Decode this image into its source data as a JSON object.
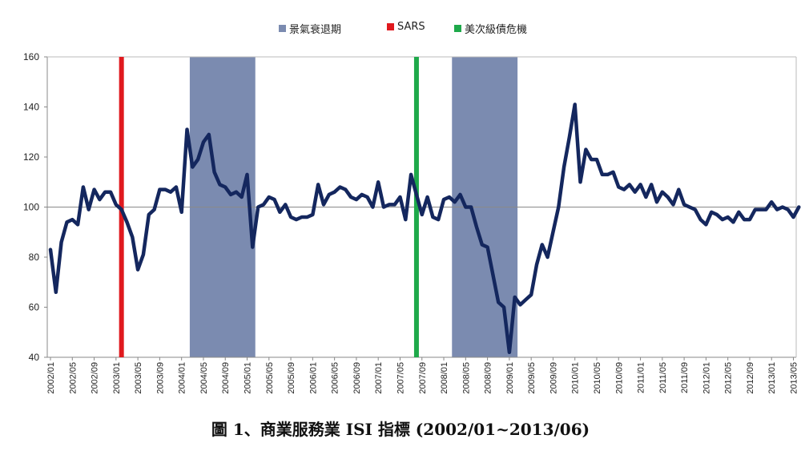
{
  "caption": "圖 1、商業服務業 ISI 指標 (2002/01~2013/06)",
  "legend": [
    {
      "label": "景氣衰退期",
      "color": "#7b8bb0"
    },
    {
      "label": "SARS",
      "color": "#e0191e"
    },
    {
      "label": "美次級債危機",
      "color": "#1ea94a"
    }
  ],
  "chart_data": {
    "type": "line",
    "title": "",
    "xlabel": "",
    "ylabel": "",
    "ylim": [
      40,
      160
    ],
    "yticks": [
      40,
      60,
      80,
      100,
      120,
      140,
      160
    ],
    "reference_line": 100,
    "grid": false,
    "legend_position": "top-center",
    "xtick_labels": [
      "2002/01",
      "2002/05",
      "2002/09",
      "2003/01",
      "2003/05",
      "2003/09",
      "2004/01",
      "2004/05",
      "2004/09",
      "2005/01",
      "2005/05",
      "2005/09",
      "2006/01",
      "2006/05",
      "2006/09",
      "2007/01",
      "2007/05",
      "2007/09",
      "2008/01",
      "2008/05",
      "2008/09",
      "2009/01",
      "2009/05",
      "2009/09",
      "2010/01",
      "2010/05",
      "2010/09",
      "2011/01",
      "2011/05",
      "2011/09",
      "2012/01",
      "2012/05",
      "2012/09",
      "2013/01",
      "2013/05"
    ],
    "recession_periods": [
      [
        "2004/03",
        "2005/02"
      ],
      [
        "2008/03",
        "2009/02"
      ]
    ],
    "events": [
      {
        "name": "SARS",
        "date": "2003/02",
        "color": "#e0191e"
      },
      {
        "name": "美次級債危機",
        "date": "2007/08",
        "color": "#1ea94a"
      }
    ],
    "series": [
      {
        "name": "商業服務業 ISI",
        "color": "#14275e",
        "start": "2002/01",
        "values": [
          83,
          66,
          86,
          94,
          95,
          93,
          108,
          99,
          107,
          103,
          106,
          106,
          101,
          99,
          94,
          88,
          75,
          81,
          97,
          99,
          107,
          107,
          106,
          108,
          98,
          131,
          116,
          119,
          126,
          129,
          114,
          109,
          108,
          105,
          106,
          104,
          113,
          84,
          100,
          101,
          104,
          103,
          98,
          101,
          96,
          95,
          96,
          96,
          97,
          109,
          101,
          105,
          106,
          108,
          107,
          104,
          103,
          105,
          104,
          100,
          110,
          100,
          101,
          101,
          104,
          95,
          113,
          105,
          97,
          104,
          96,
          95,
          103,
          104,
          102,
          105,
          100,
          100,
          92,
          85,
          84,
          73,
          62,
          60,
          42,
          64,
          61,
          63,
          65,
          77,
          85,
          80,
          90,
          100,
          116,
          128,
          141,
          110,
          123,
          119,
          119,
          113,
          113,
          114,
          108,
          107,
          109,
          106,
          109,
          104,
          109,
          102,
          106,
          104,
          101,
          107,
          101,
          100,
          99,
          95,
          93,
          98,
          97,
          95,
          96,
          94,
          98,
          95,
          95,
          99,
          99,
          99,
          102,
          99,
          100,
          99,
          96,
          100
        ]
      }
    ]
  }
}
